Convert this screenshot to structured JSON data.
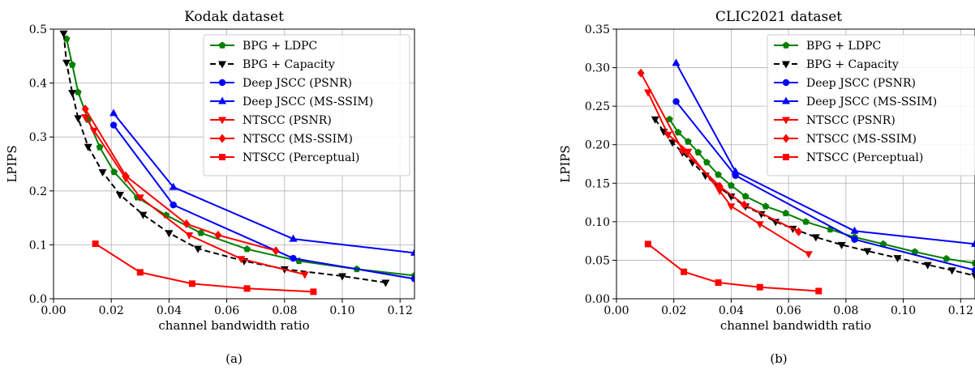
{
  "chart_data": [
    {
      "type": "line",
      "title": "Kodak dataset",
      "xlabel": "channel bandwidth ratio",
      "ylabel": "LPIPS",
      "caption": "(a)",
      "xlim": [
        0.0,
        0.125
      ],
      "ylim": [
        0.0,
        0.5
      ],
      "xticks": [
        0.0,
        0.02,
        0.04,
        0.06,
        0.08,
        0.1,
        0.12
      ],
      "xtick_labels": [
        "0.00",
        "0.02",
        "0.04",
        "0.06",
        "0.08",
        "0.10",
        "0.12"
      ],
      "yticks": [
        0.0,
        0.1,
        0.2,
        0.3,
        0.4,
        0.5
      ],
      "ytick_labels": [
        "0.0",
        "0.1",
        "0.2",
        "0.3",
        "0.4",
        "0.5"
      ],
      "grid": true,
      "legend_position": "top-right",
      "series": [
        {
          "name": "BPG + LDPC",
          "color": "#008000",
          "marker": "pentagon",
          "dash": "solid",
          "x": [
            0.0045,
            0.0065,
            0.0085,
            0.012,
            0.016,
            0.021,
            0.029,
            0.039,
            0.051,
            0.067,
            0.085,
            0.105,
            0.125
          ],
          "y": [
            0.482,
            0.434,
            0.383,
            0.332,
            0.281,
            0.235,
            0.188,
            0.155,
            0.122,
            0.092,
            0.07,
            0.055,
            0.043
          ]
        },
        {
          "name": "BPG + Capacity",
          "color": "#000000",
          "marker": "triangle-down",
          "dash": "dashed",
          "x": [
            0.0035,
            0.0045,
            0.0065,
            0.0085,
            0.012,
            0.017,
            0.023,
            0.031,
            0.04,
            0.05,
            0.066,
            0.08,
            0.1,
            0.115
          ],
          "y": [
            0.492,
            0.438,
            0.382,
            0.335,
            0.282,
            0.235,
            0.193,
            0.156,
            0.122,
            0.093,
            0.07,
            0.055,
            0.042,
            0.03
          ]
        },
        {
          "name": "Deep JSCC (PSNR)",
          "color": "#0000ff",
          "marker": "circle",
          "dash": "solid",
          "x": [
            0.0208,
            0.0415,
            0.083,
            0.125
          ],
          "y": [
            0.322,
            0.174,
            0.075,
            0.037
          ]
        },
        {
          "name": "Deep JSCC (MS-SSIM)",
          "color": "#0000ff",
          "marker": "triangle-up",
          "dash": "solid",
          "x": [
            0.0208,
            0.0415,
            0.083,
            0.125
          ],
          "y": [
            0.344,
            0.207,
            0.111,
            0.085
          ]
        },
        {
          "name": "NTSCC (PSNR)",
          "color": "#ff0000",
          "marker": "triangle-down",
          "dash": "solid",
          "x": [
            0.011,
            0.014,
            0.025,
            0.03,
            0.047,
            0.065,
            0.087
          ],
          "y": [
            0.337,
            0.312,
            0.223,
            0.188,
            0.118,
            0.074,
            0.045
          ]
        },
        {
          "name": "NTSCC (MS-SSIM)",
          "color": "#ff0000",
          "marker": "diamond",
          "dash": "solid",
          "x": [
            0.011,
            0.025,
            0.046,
            0.057,
            0.077
          ],
          "y": [
            0.352,
            0.228,
            0.139,
            0.118,
            0.089
          ]
        },
        {
          "name": "NTSCC (Perceptual)",
          "color": "#ff0000",
          "marker": "square",
          "dash": "solid",
          "x": [
            0.0145,
            0.03,
            0.048,
            0.067,
            0.09
          ],
          "y": [
            0.102,
            0.049,
            0.028,
            0.019,
            0.013
          ]
        }
      ]
    },
    {
      "type": "line",
      "title": "CLIC2021 dataset",
      "xlabel": "channel bandwidth ratio",
      "ylabel": "LPIPS",
      "caption": "(b)",
      "xlim": [
        0.0,
        0.125
      ],
      "ylim": [
        0.0,
        0.35
      ],
      "xticks": [
        0.0,
        0.02,
        0.04,
        0.06,
        0.08,
        0.1,
        0.12
      ],
      "xtick_labels": [
        "0.00",
        "0.02",
        "0.04",
        "0.06",
        "0.08",
        "0.10",
        "0.12"
      ],
      "yticks": [
        0.0,
        0.05,
        0.1,
        0.15,
        0.2,
        0.25,
        0.3,
        0.35
      ],
      "ytick_labels": [
        "0.00",
        "0.05",
        "0.10",
        "0.15",
        "0.20",
        "0.25",
        "0.30",
        "0.35"
      ],
      "grid": true,
      "legend_position": "top-right",
      "series": [
        {
          "name": "BPG + LDPC",
          "color": "#008000",
          "marker": "pentagon",
          "dash": "solid",
          "x": [
            0.0185,
            0.0215,
            0.025,
            0.0285,
            0.0315,
            0.0355,
            0.04,
            0.045,
            0.052,
            0.059,
            0.066,
            0.0745,
            0.083,
            0.093,
            0.104,
            0.115,
            0.125
          ],
          "y": [
            0.233,
            0.216,
            0.204,
            0.19,
            0.177,
            0.161,
            0.147,
            0.133,
            0.12,
            0.111,
            0.1,
            0.09,
            0.08,
            0.071,
            0.061,
            0.052,
            0.046
          ]
        },
        {
          "name": "BPG + Capacity",
          "color": "#000000",
          "marker": "triangle-down",
          "dash": "dashed",
          "x": [
            0.0135,
            0.0165,
            0.0195,
            0.023,
            0.0265,
            0.031,
            0.035,
            0.04,
            0.045,
            0.0505,
            0.0555,
            0.0615,
            0.0695,
            0.0785,
            0.0875,
            0.098,
            0.1085,
            0.117,
            0.125
          ],
          "y": [
            0.233,
            0.217,
            0.203,
            0.19,
            0.177,
            0.16,
            0.147,
            0.133,
            0.12,
            0.11,
            0.1,
            0.091,
            0.08,
            0.07,
            0.062,
            0.053,
            0.044,
            0.037,
            0.03
          ]
        },
        {
          "name": "Deep JSCC (PSNR)",
          "color": "#0000ff",
          "marker": "circle",
          "dash": "solid",
          "x": [
            0.0208,
            0.0415,
            0.083,
            0.125
          ],
          "y": [
            0.256,
            0.16,
            0.077,
            0.037
          ]
        },
        {
          "name": "Deep JSCC (MS-SSIM)",
          "color": "#0000ff",
          "marker": "triangle-up",
          "dash": "solid",
          "x": [
            0.0208,
            0.0415,
            0.083,
            0.125
          ],
          "y": [
            0.306,
            0.165,
            0.088,
            0.071
          ]
        },
        {
          "name": "NTSCC (PSNR)",
          "color": "#ff0000",
          "marker": "triangle-down",
          "dash": "solid",
          "x": [
            0.011,
            0.018,
            0.025,
            0.036,
            0.04,
            0.05,
            0.067
          ],
          "y": [
            0.268,
            0.213,
            0.191,
            0.14,
            0.12,
            0.097,
            0.058
          ]
        },
        {
          "name": "NTSCC (MS-SSIM)",
          "color": "#ff0000",
          "marker": "diamond",
          "dash": "solid",
          "x": [
            0.0085,
            0.023,
            0.036,
            0.0445,
            0.0635
          ],
          "y": [
            0.293,
            0.193,
            0.146,
            0.122,
            0.087
          ]
        },
        {
          "name": "NTSCC (Perceptual)",
          "color": "#ff0000",
          "marker": "square",
          "dash": "solid",
          "x": [
            0.011,
            0.0235,
            0.0355,
            0.05,
            0.0705
          ],
          "y": [
            0.071,
            0.035,
            0.021,
            0.015,
            0.01
          ]
        }
      ]
    }
  ]
}
